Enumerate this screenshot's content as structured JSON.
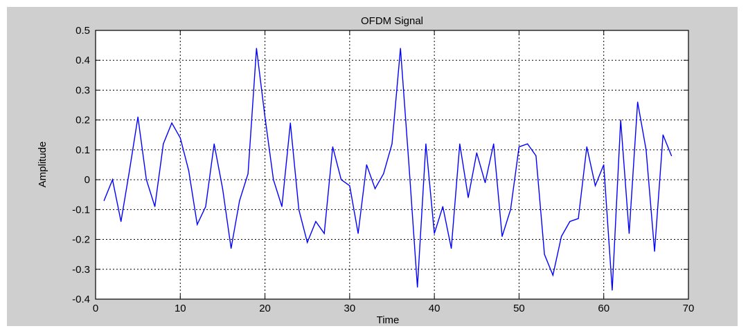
{
  "chart_data": {
    "type": "line",
    "title": "OFDM Signal",
    "xlabel": "Time",
    "ylabel": "Amplitude",
    "xlim": [
      0,
      70
    ],
    "ylim": [
      -0.4,
      0.5
    ],
    "grid": true,
    "xticks": [
      0,
      10,
      20,
      30,
      40,
      50,
      60,
      70
    ],
    "xtick_labels": [
      "0",
      "10",
      "20",
      "30",
      "40",
      "50",
      "60",
      "70"
    ],
    "yticks": [
      0.5,
      0.4,
      0.3,
      0.2,
      0.1,
      0,
      -0.1,
      -0.2,
      -0.3,
      -0.4
    ],
    "ytick_labels": [
      "0.5",
      "0.4",
      "0.3",
      "0.2",
      "0.1",
      "0",
      "-0.1",
      "-0.2",
      "-0.3",
      "-0.4"
    ],
    "series": [
      {
        "color": "#0000ff",
        "x": [
          1,
          2,
          3,
          4,
          5,
          6,
          7,
          8,
          9,
          10,
          11,
          12,
          13,
          14,
          15,
          16,
          17,
          18,
          19,
          20,
          21,
          22,
          23,
          24,
          25,
          26,
          27,
          28,
          29,
          30,
          31,
          32,
          33,
          34,
          35,
          36,
          37,
          38,
          39,
          40,
          41,
          42,
          43,
          44,
          45,
          46,
          47,
          48,
          49,
          50,
          51,
          52,
          53,
          54,
          55,
          56,
          57,
          58,
          59,
          60,
          61,
          62,
          63,
          64,
          65,
          66,
          67,
          68
        ],
        "y": [
          -0.07,
          0.0,
          -0.14,
          0.03,
          0.21,
          0.0,
          -0.09,
          0.12,
          0.19,
          0.14,
          0.03,
          -0.15,
          -0.09,
          0.12,
          -0.03,
          -0.23,
          -0.07,
          0.02,
          0.44,
          0.21,
          0.0,
          -0.09,
          0.19,
          -0.1,
          -0.21,
          -0.14,
          -0.18,
          0.11,
          0.0,
          -0.02,
          -0.18,
          0.05,
          -0.03,
          0.02,
          0.12,
          0.44,
          0.05,
          -0.36,
          0.12,
          -0.18,
          -0.09,
          -0.23,
          0.12,
          -0.06,
          0.09,
          -0.01,
          0.12,
          -0.19,
          -0.1,
          0.11,
          0.12,
          0.08,
          -0.25,
          -0.32,
          -0.19,
          -0.14,
          -0.13,
          0.11,
          -0.02,
          0.05,
          -0.37,
          0.2,
          -0.18,
          0.26,
          0.1,
          -0.24,
          0.15,
          0.08
        ]
      }
    ]
  }
}
